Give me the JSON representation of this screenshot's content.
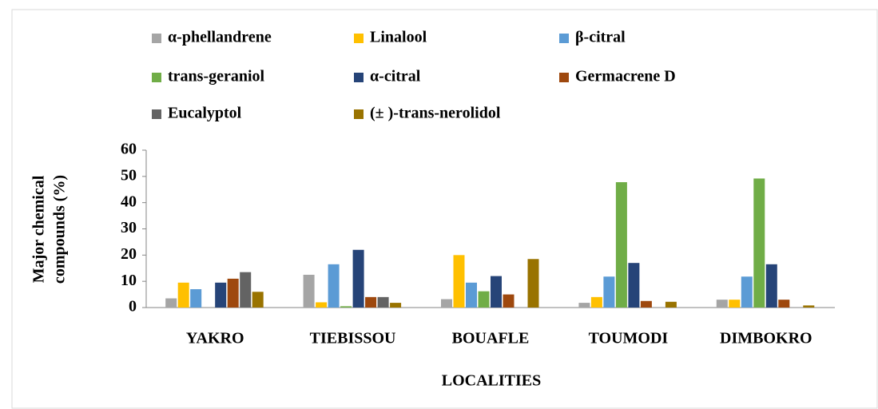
{
  "chart_data": {
    "type": "bar",
    "x_label": "LOCALITIES",
    "y_label": [
      "Major chemical",
      "compounds (%)"
    ],
    "categories": [
      "YAKRO",
      "TIEBISSOU",
      "BOUAFLE",
      "TOUMODI",
      "DIMBOKRO"
    ],
    "series": [
      {
        "name": "α-phellandrene",
        "color": "#a5a5a5",
        "values": [
          3.5,
          12.5,
          3.2,
          1.8,
          3
        ]
      },
      {
        "name": "Linalool",
        "color": "#ffc000",
        "values": [
          9.5,
          2,
          20,
          4,
          3
        ]
      },
      {
        "name": "β-citral",
        "color": "#5b9bd5",
        "values": [
          7,
          16.5,
          9.5,
          11.8,
          11.8
        ]
      },
      {
        "name": "trans-geraniol",
        "color": "#70ad47",
        "values": [
          0,
          0.5,
          6.2,
          47.8,
          49.2
        ]
      },
      {
        "name": "α-citral",
        "color": "#264478",
        "values": [
          9.5,
          22,
          12,
          17,
          16.5
        ]
      },
      {
        "name": "Germacrene D",
        "color": "#9e480e",
        "values": [
          11,
          4,
          5,
          2.5,
          3
        ]
      },
      {
        "name": "Eucalyptol",
        "color": "#636363",
        "values": [
          13.5,
          4,
          0,
          0,
          0
        ]
      },
      {
        "name": "(± )-trans-nerolidol",
        "color": "#997300",
        "values": [
          6,
          1.8,
          18.5,
          2.2,
          0.8
        ]
      }
    ],
    "ylim": [
      0,
      60
    ],
    "yticks": [
      0,
      10,
      20,
      30,
      40,
      50,
      60
    ],
    "grid": false,
    "legend": "top"
  }
}
